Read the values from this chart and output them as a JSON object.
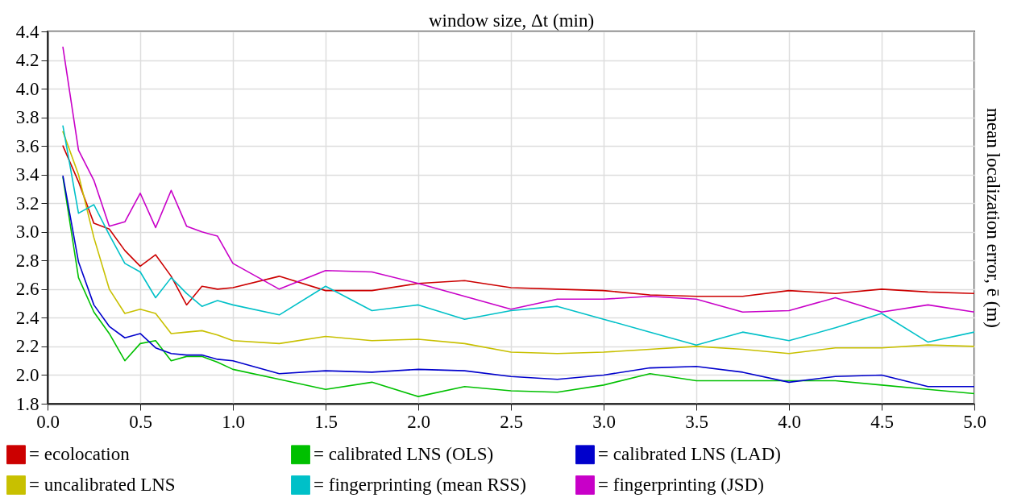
{
  "chart_data": {
    "type": "line",
    "xlabel": "window size, Δt (min)",
    "ylabel": "mean localization error, ē (m)",
    "x": [
      0.083,
      0.167,
      0.25,
      0.333,
      0.417,
      0.5,
      0.583,
      0.667,
      0.75,
      0.833,
      0.917,
      1.0,
      1.25,
      1.5,
      1.75,
      2.0,
      2.25,
      2.5,
      2.75,
      3.0,
      3.25,
      3.5,
      3.75,
      4.0,
      4.25,
      4.5,
      4.75,
      5.0
    ],
    "series": [
      {
        "name": "= ecolocation",
        "color": "#cc0000",
        "values": [
          3.6,
          3.35,
          3.06,
          3.02,
          2.87,
          2.76,
          2.84,
          2.69,
          2.49,
          2.62,
          2.6,
          2.61,
          2.69,
          2.59,
          2.59,
          2.64,
          2.66,
          2.61,
          2.6,
          2.59,
          2.56,
          2.55,
          2.55,
          2.59,
          2.57,
          2.6,
          2.58,
          2.57
        ]
      },
      {
        "name": "= calibrated LNS (OLS)",
        "color": "#00c000",
        "values": [
          3.38,
          2.68,
          2.44,
          2.29,
          2.1,
          2.22,
          2.24,
          2.1,
          2.13,
          2.13,
          2.09,
          2.04,
          1.97,
          1.9,
          1.95,
          1.85,
          1.92,
          1.89,
          1.88,
          1.93,
          2.01,
          1.96,
          1.96,
          1.96,
          1.96,
          1.93,
          1.9,
          1.87
        ]
      },
      {
        "name": "= calibrated LNS (LAD)",
        "color": "#0000cc",
        "values": [
          3.39,
          2.79,
          2.49,
          2.34,
          2.26,
          2.29,
          2.19,
          2.15,
          2.14,
          2.14,
          2.11,
          2.1,
          2.01,
          2.03,
          2.02,
          2.04,
          2.03,
          1.99,
          1.97,
          2.0,
          2.05,
          2.06,
          2.02,
          1.95,
          1.99,
          2.0,
          1.92,
          1.92
        ]
      },
      {
        "name": "= uncalibrated LNS",
        "color": "#c8c000",
        "values": [
          3.7,
          3.4,
          2.96,
          2.6,
          2.43,
          2.46,
          2.43,
          2.29,
          2.3,
          2.31,
          2.28,
          2.24,
          2.22,
          2.27,
          2.24,
          2.25,
          2.22,
          2.16,
          2.15,
          2.16,
          2.18,
          2.2,
          2.18,
          2.15,
          2.19,
          2.19,
          2.21,
          2.2
        ]
      },
      {
        "name": "= fingerprinting (mean RSS)",
        "color": "#00c0c8",
        "values": [
          3.74,
          3.13,
          3.19,
          2.98,
          2.78,
          2.72,
          2.54,
          2.68,
          2.57,
          2.48,
          2.52,
          2.49,
          2.42,
          2.62,
          2.45,
          2.49,
          2.39,
          2.45,
          2.48,
          2.39,
          2.3,
          2.21,
          2.3,
          2.24,
          2.33,
          2.43,
          2.23,
          2.3
        ]
      },
      {
        "name": "= fingerprinting (JSD)",
        "color": "#c800c8",
        "values": [
          4.29,
          3.57,
          3.36,
          3.04,
          3.07,
          3.27,
          3.03,
          3.29,
          3.04,
          3.0,
          2.97,
          2.78,
          2.6,
          2.73,
          2.72,
          2.64,
          2.55,
          2.46,
          2.53,
          2.53,
          2.55,
          2.53,
          2.44,
          2.45,
          2.54,
          2.44,
          2.49,
          2.44
        ]
      }
    ],
    "xlim": [
      0,
      5
    ],
    "xticks": [
      {
        "value": 0,
        "label": "0.0"
      },
      {
        "value": 0.5,
        "label": "0.5"
      },
      {
        "value": 1,
        "label": "1.0"
      },
      {
        "value": 1.5,
        "label": "1.5"
      },
      {
        "value": 2,
        "label": "2.0"
      },
      {
        "value": 2.5,
        "label": "2.5"
      },
      {
        "value": 3,
        "label": "3.0"
      },
      {
        "value": 3.5,
        "label": "3.5"
      },
      {
        "value": 4,
        "label": "4.0"
      },
      {
        "value": 4.5,
        "label": "4.5"
      },
      {
        "value": 5,
        "label": "5.0"
      }
    ],
    "ylim": [
      1.8,
      4.4
    ],
    "yticks": [
      {
        "value": 1.8,
        "label": "1.8"
      },
      {
        "value": 2.0,
        "label": "2.0"
      },
      {
        "value": 2.2,
        "label": "2.2"
      },
      {
        "value": 2.4,
        "label": "2.4"
      },
      {
        "value": 2.6,
        "label": "2.6"
      },
      {
        "value": 2.8,
        "label": "2.8"
      },
      {
        "value": 3.0,
        "label": "3.0"
      },
      {
        "value": 3.2,
        "label": "3.2"
      },
      {
        "value": 3.4,
        "label": "3.4"
      },
      {
        "value": 3.6,
        "label": "3.6"
      },
      {
        "value": 3.8,
        "label": "3.8"
      },
      {
        "value": 4.0,
        "label": "4.0"
      },
      {
        "value": 4.2,
        "label": "4.2"
      },
      {
        "value": 4.4,
        "label": "4.4"
      }
    ],
    "grid": true,
    "legend": "bottom",
    "marker": "none",
    "line_style": "solid"
  }
}
